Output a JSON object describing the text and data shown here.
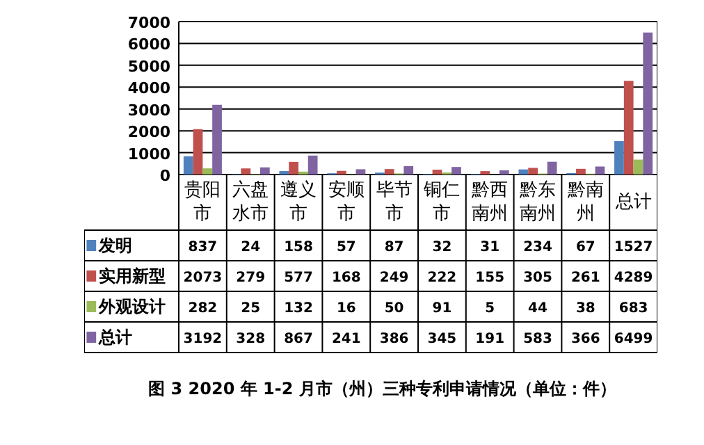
{
  "chart_data": {
    "type": "bar",
    "title": "图 3  2020 年 1-2 月市（州）三种专利申请情况（单位：件）",
    "categories": [
      "贵阳市",
      "六盘水市",
      "遵义市",
      "安顺市",
      "毕节市",
      "铜仁市",
      "黔西南州",
      "黔东南州",
      "黔南州",
      "总计"
    ],
    "series": [
      {
        "name": "发明",
        "color": "#4f81bd",
        "values": [
          837,
          24,
          158,
          57,
          87,
          32,
          31,
          234,
          67,
          1527
        ]
      },
      {
        "name": "实用新型",
        "color": "#c0504d",
        "values": [
          2073,
          279,
          577,
          168,
          249,
          222,
          155,
          305,
          261,
          4289
        ]
      },
      {
        "name": "外观设计",
        "color": "#9bbb59",
        "values": [
          282,
          25,
          132,
          16,
          50,
          91,
          5,
          44,
          38,
          683
        ]
      },
      {
        "name": "总计",
        "color": "#8064a2",
        "values": [
          3192,
          328,
          867,
          241,
          386,
          345,
          191,
          583,
          366,
          6499
        ]
      }
    ],
    "ylim": [
      0,
      7000
    ],
    "yticks": [
      0,
      1000,
      2000,
      3000,
      4000,
      5000,
      6000,
      7000
    ],
    "grid": "y",
    "legend": "bottom",
    "data_labels": true
  }
}
